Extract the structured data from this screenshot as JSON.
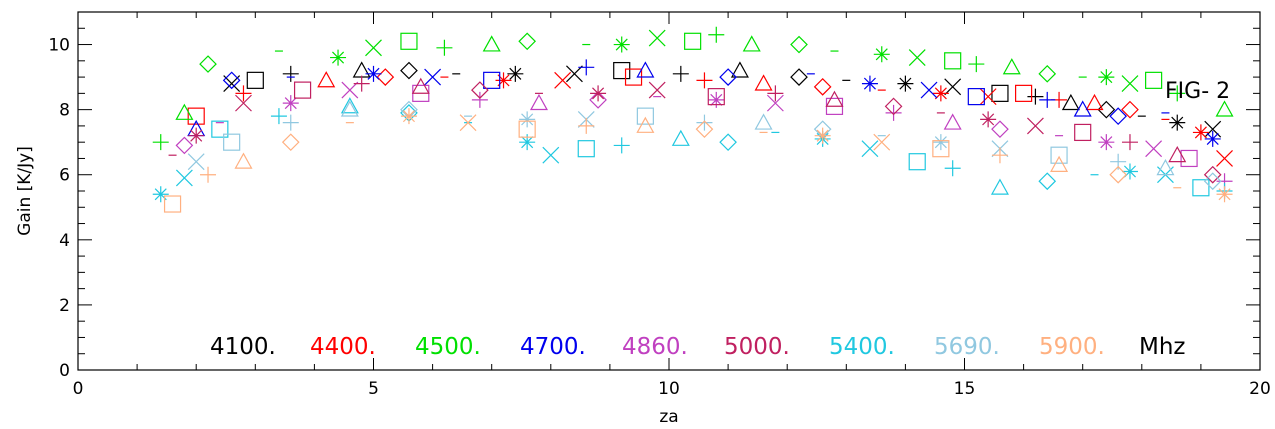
{
  "chart_data": {
    "type": "scatter",
    "title": "",
    "xlabel": "za",
    "ylabel": "Gain [K/Jy]",
    "xlim": [
      0,
      20
    ],
    "ylim": [
      0,
      11
    ],
    "x_ticks": [
      0,
      5,
      10,
      15,
      20
    ],
    "y_ticks": [
      0,
      2,
      4,
      6,
      8,
      10
    ],
    "x_tick_labels": [
      "0",
      "5",
      "10",
      "15",
      "20"
    ],
    "y_tick_labels": [
      "0",
      "2",
      "4",
      "6",
      "8",
      "10"
    ],
    "grid": false,
    "annotation": "FIG- 2",
    "legend": {
      "placement": "bottom-center",
      "unit": "Mhz",
      "entries": [
        {
          "label": "4100.",
          "color": "#000000"
        },
        {
          "label": "4400.",
          "color": "#ff0000"
        },
        {
          "label": "4500.",
          "color": "#00e000"
        },
        {
          "label": "4700.",
          "color": "#0000ee"
        },
        {
          "label": "4860.",
          "color": "#c040c0"
        },
        {
          "label": "5000.",
          "color": "#c02060"
        },
        {
          "label": "5400.",
          "color": "#20c8e0"
        },
        {
          "label": "5690.",
          "color": "#90c8e0"
        },
        {
          "label": "5900.",
          "color": "#ffb080"
        }
      ]
    },
    "series": [
      {
        "color": "#000000",
        "points": [
          [
            2.6,
            8.8
          ],
          [
            3.0,
            8.9
          ],
          [
            3.6,
            9.1
          ],
          [
            4.8,
            9.2
          ],
          [
            5.6,
            9.2
          ],
          [
            6.4,
            9.1
          ],
          [
            7.4,
            9.1
          ],
          [
            8.4,
            9.1
          ],
          [
            9.2,
            9.2
          ],
          [
            10.2,
            9.1
          ],
          [
            11.2,
            9.2
          ],
          [
            12.2,
            9.0
          ],
          [
            13.0,
            8.9
          ],
          [
            14.0,
            8.8
          ],
          [
            14.8,
            8.7
          ],
          [
            15.6,
            8.5
          ],
          [
            16.2,
            8.4
          ],
          [
            16.8,
            8.2
          ],
          [
            17.4,
            8.0
          ],
          [
            18.0,
            7.8
          ],
          [
            18.6,
            7.6
          ],
          [
            19.2,
            7.4
          ]
        ]
      },
      {
        "color": "#ff0000",
        "points": [
          [
            2.0,
            7.8
          ],
          [
            2.8,
            8.5
          ],
          [
            4.2,
            8.9
          ],
          [
            5.2,
            9.0
          ],
          [
            6.2,
            9.0
          ],
          [
            7.2,
            8.9
          ],
          [
            8.2,
            8.9
          ],
          [
            9.4,
            9.0
          ],
          [
            10.6,
            8.9
          ],
          [
            11.6,
            8.8
          ],
          [
            12.6,
            8.7
          ],
          [
            13.6,
            8.6
          ],
          [
            14.6,
            8.5
          ],
          [
            15.4,
            8.4
          ],
          [
            16.0,
            8.5
          ],
          [
            16.6,
            8.3
          ],
          [
            17.2,
            8.2
          ],
          [
            17.8,
            8.0
          ],
          [
            18.4,
            7.7
          ],
          [
            19.0,
            7.3
          ],
          [
            19.4,
            6.5
          ]
        ]
      },
      {
        "color": "#00e000",
        "points": [
          [
            1.4,
            7.0
          ],
          [
            1.8,
            7.9
          ],
          [
            2.2,
            9.4
          ],
          [
            3.4,
            9.8
          ],
          [
            4.4,
            9.6
          ],
          [
            5.0,
            9.9
          ],
          [
            5.6,
            10.1
          ],
          [
            6.2,
            9.9
          ],
          [
            7.0,
            10.0
          ],
          [
            7.6,
            10.1
          ],
          [
            8.6,
            10.0
          ],
          [
            9.2,
            10.0
          ],
          [
            9.8,
            10.2
          ],
          [
            10.4,
            10.1
          ],
          [
            10.8,
            10.3
          ],
          [
            11.4,
            10.0
          ],
          [
            12.2,
            10.0
          ],
          [
            12.8,
            9.8
          ],
          [
            13.6,
            9.7
          ],
          [
            14.2,
            9.6
          ],
          [
            14.8,
            9.5
          ],
          [
            15.2,
            9.4
          ],
          [
            15.8,
            9.3
          ],
          [
            16.4,
            9.1
          ],
          [
            17.0,
            9.0
          ],
          [
            17.4,
            9.0
          ],
          [
            17.8,
            8.8
          ],
          [
            18.2,
            8.9
          ],
          [
            18.6,
            8.5
          ],
          [
            19.4,
            8.0
          ]
        ]
      },
      {
        "color": "#0000ee",
        "points": [
          [
            2.0,
            7.4
          ],
          [
            2.6,
            8.9
          ],
          [
            3.6,
            9.0
          ],
          [
            5.0,
            9.1
          ],
          [
            6.0,
            9.0
          ],
          [
            7.0,
            8.9
          ],
          [
            8.6,
            9.3
          ],
          [
            9.6,
            9.2
          ],
          [
            11.0,
            9.0
          ],
          [
            12.4,
            9.1
          ],
          [
            13.4,
            8.8
          ],
          [
            14.4,
            8.6
          ],
          [
            15.2,
            8.4
          ],
          [
            16.4,
            8.3
          ],
          [
            17.0,
            8.0
          ],
          [
            17.6,
            7.8
          ],
          [
            18.4,
            7.9
          ],
          [
            19.2,
            7.1
          ]
        ]
      },
      {
        "color": "#c040c0",
        "points": [
          [
            1.8,
            6.9
          ],
          [
            2.4,
            7.6
          ],
          [
            3.6,
            8.2
          ],
          [
            4.6,
            8.6
          ],
          [
            5.8,
            8.5
          ],
          [
            6.8,
            8.3
          ],
          [
            7.8,
            8.2
          ],
          [
            8.8,
            8.3
          ],
          [
            9.8,
            8.4
          ],
          [
            10.8,
            8.3
          ],
          [
            11.8,
            8.2
          ],
          [
            12.8,
            8.1
          ],
          [
            13.8,
            7.9
          ],
          [
            14.8,
            7.6
          ],
          [
            15.6,
            7.4
          ],
          [
            16.6,
            7.2
          ],
          [
            17.4,
            7.0
          ],
          [
            18.2,
            6.8
          ],
          [
            18.8,
            6.5
          ],
          [
            19.4,
            5.8
          ]
        ]
      },
      {
        "color": "#c02060",
        "points": [
          [
            1.6,
            6.6
          ],
          [
            2.0,
            7.2
          ],
          [
            2.8,
            8.2
          ],
          [
            3.8,
            8.6
          ],
          [
            4.8,
            8.8
          ],
          [
            5.8,
            8.7
          ],
          [
            6.8,
            8.6
          ],
          [
            7.8,
            8.5
          ],
          [
            8.8,
            8.5
          ],
          [
            9.8,
            8.6
          ],
          [
            10.8,
            8.4
          ],
          [
            11.8,
            8.5
          ],
          [
            12.8,
            8.3
          ],
          [
            13.8,
            8.1
          ],
          [
            14.6,
            7.9
          ],
          [
            15.4,
            7.7
          ],
          [
            16.2,
            7.5
          ],
          [
            17.0,
            7.3
          ],
          [
            17.8,
            7.0
          ],
          [
            18.6,
            6.6
          ],
          [
            19.2,
            6.0
          ]
        ]
      },
      {
        "color": "#20c8e0",
        "points": [
          [
            1.4,
            5.4
          ],
          [
            1.8,
            5.9
          ],
          [
            2.4,
            7.4
          ],
          [
            3.4,
            7.8
          ],
          [
            4.6,
            8.1
          ],
          [
            5.6,
            7.9
          ],
          [
            6.6,
            7.6
          ],
          [
            7.6,
            7.0
          ],
          [
            8.0,
            6.6
          ],
          [
            8.6,
            6.8
          ],
          [
            9.2,
            6.9
          ],
          [
            10.2,
            7.1
          ],
          [
            11.0,
            7.0
          ],
          [
            11.8,
            7.3
          ],
          [
            12.6,
            7.1
          ],
          [
            13.4,
            6.8
          ],
          [
            14.2,
            6.4
          ],
          [
            14.8,
            6.2
          ],
          [
            15.6,
            5.6
          ],
          [
            16.4,
            5.8
          ],
          [
            17.2,
            6.0
          ],
          [
            17.8,
            6.1
          ],
          [
            18.4,
            6.0
          ],
          [
            19.0,
            5.6
          ],
          [
            19.4,
            5.5
          ]
        ]
      },
      {
        "color": "#90c8e0",
        "points": [
          [
            2.0,
            6.4
          ],
          [
            2.6,
            7.0
          ],
          [
            3.6,
            7.6
          ],
          [
            4.6,
            8.0
          ],
          [
            5.6,
            8.0
          ],
          [
            6.6,
            7.8
          ],
          [
            7.6,
            7.7
          ],
          [
            8.6,
            7.7
          ],
          [
            9.6,
            7.8
          ],
          [
            10.6,
            7.6
          ],
          [
            11.6,
            7.6
          ],
          [
            12.6,
            7.4
          ],
          [
            13.6,
            7.2
          ],
          [
            14.6,
            7.0
          ],
          [
            15.6,
            6.8
          ],
          [
            16.6,
            6.6
          ],
          [
            17.6,
            6.4
          ],
          [
            18.4,
            6.2
          ],
          [
            19.2,
            5.8
          ]
        ]
      },
      {
        "color": "#ffb080",
        "points": [
          [
            1.6,
            5.1
          ],
          [
            2.2,
            6.0
          ],
          [
            2.8,
            6.4
          ],
          [
            3.6,
            7.0
          ],
          [
            4.6,
            7.6
          ],
          [
            5.6,
            7.8
          ],
          [
            6.6,
            7.6
          ],
          [
            7.6,
            7.4
          ],
          [
            8.6,
            7.5
          ],
          [
            9.6,
            7.5
          ],
          [
            10.6,
            7.4
          ],
          [
            11.6,
            7.3
          ],
          [
            12.6,
            7.2
          ],
          [
            13.6,
            7.0
          ],
          [
            14.6,
            6.8
          ],
          [
            15.6,
            6.6
          ],
          [
            16.6,
            6.3
          ],
          [
            17.6,
            6.0
          ],
          [
            18.6,
            5.6
          ],
          [
            19.4,
            5.4
          ]
        ]
      }
    ]
  }
}
